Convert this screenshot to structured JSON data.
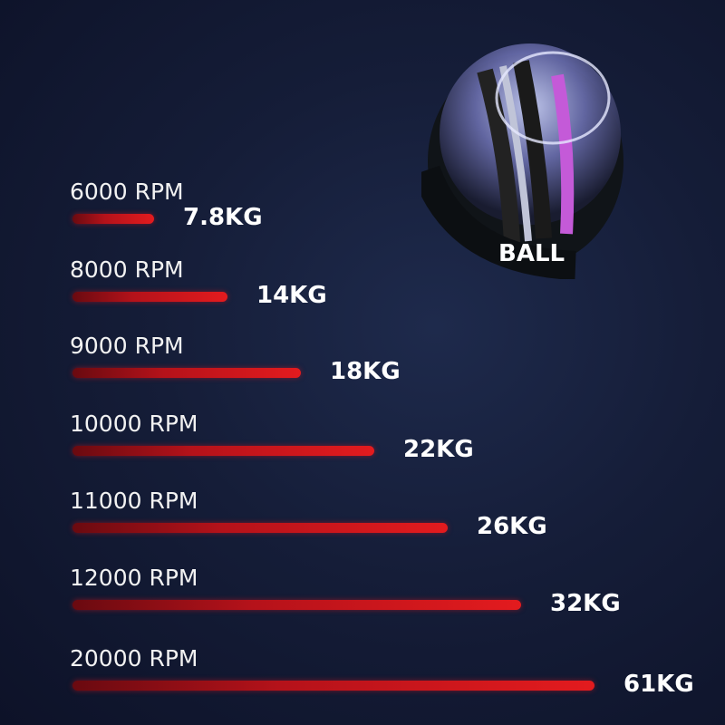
{
  "chart_data": {
    "type": "bar",
    "orientation": "horizontal",
    "categories": [
      "6000 RPM",
      "8000 RPM",
      "9000 RPM",
      "10000 RPM",
      "11000 RPM",
      "12000 RPM",
      "20000 RPM"
    ],
    "value_labels": [
      "7.8KG",
      "14KG",
      "18KG",
      "22KG",
      "26KG",
      "32KG",
      "61KG"
    ],
    "values": [
      7.8,
      14,
      18,
      22,
      26,
      32,
      61
    ],
    "bar_color": "#e31b1e",
    "label_color": "#ffffff",
    "background": "#151d38"
  },
  "product": {
    "logo_text": "BALL"
  }
}
